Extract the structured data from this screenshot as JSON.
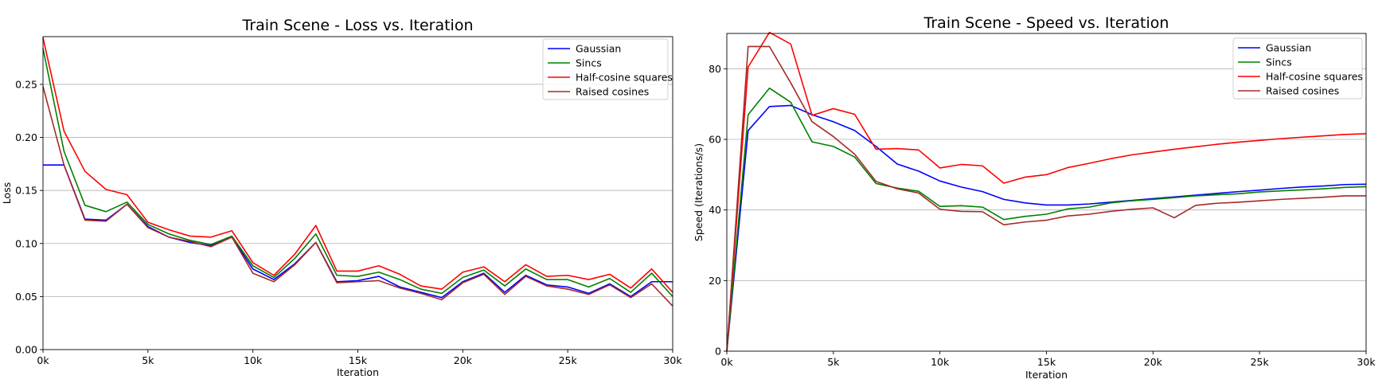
{
  "chart_data": [
    {
      "type": "line",
      "title": "Train Scene - Loss vs. Iteration",
      "xlabel": "Iteration",
      "ylabel": "Loss",
      "xlim": [
        0,
        30000
      ],
      "ylim": [
        0,
        0.295
      ],
      "xticks": [
        0,
        5000,
        10000,
        15000,
        20000,
        25000,
        30000
      ],
      "xtick_labels": [
        "0k",
        "5k",
        "10k",
        "15k",
        "20k",
        "25k",
        "30k"
      ],
      "yticks": [
        0,
        0.05,
        0.1,
        0.15,
        0.2,
        0.25
      ],
      "ytick_labels": [
        "0.00",
        "0.05",
        "0.10",
        "0.15",
        "0.20",
        "0.25"
      ],
      "grid": "horizontal",
      "legend": "top-right",
      "x": [
        0,
        1000,
        2000,
        3000,
        4000,
        5000,
        6000,
        7000,
        8000,
        9000,
        10000,
        11000,
        12000,
        13000,
        14000,
        15000,
        16000,
        17000,
        18000,
        19000,
        20000,
        21000,
        22000,
        23000,
        24000,
        25000,
        26000,
        27000,
        28000,
        29000,
        30000
      ],
      "series": [
        {
          "name": "Gaussian",
          "color": "#0000ff",
          "x": [
            0,
            1000,
            2000,
            3000,
            4000,
            5000,
            6000,
            7000,
            8000,
            9000,
            10000,
            11000,
            12000,
            13000,
            14000,
            15000,
            16000,
            17000,
            18000,
            19000,
            20000,
            21000,
            22000,
            23000,
            24000,
            25000,
            26000,
            27000,
            28000,
            29000,
            30000
          ],
          "values": [
            0.174,
            0.174,
            0.123,
            0.122,
            0.137,
            0.116,
            0.106,
            0.101,
            0.098,
            0.106,
            0.076,
            0.066,
            0.081,
            0.101,
            0.064,
            0.065,
            0.069,
            0.059,
            0.054,
            0.049,
            0.064,
            0.072,
            0.054,
            0.07,
            0.061,
            0.059,
            0.053,
            0.062,
            0.05,
            0.064,
            0.064
          ]
        },
        {
          "name": "Sincs",
          "color": "#008000",
          "values": [
            0.284,
            0.187,
            0.136,
            0.13,
            0.139,
            0.118,
            0.109,
            0.103,
            0.099,
            0.107,
            0.079,
            0.068,
            0.086,
            0.109,
            0.07,
            0.069,
            0.073,
            0.066,
            0.057,
            0.053,
            0.068,
            0.075,
            0.06,
            0.076,
            0.066,
            0.066,
            0.059,
            0.067,
            0.054,
            0.072,
            0.05
          ]
        },
        {
          "name": "Half-cosine squares",
          "color": "#ff0000",
          "values": [
            0.294,
            0.206,
            0.168,
            0.151,
            0.146,
            0.12,
            0.113,
            0.107,
            0.106,
            0.112,
            0.082,
            0.07,
            0.09,
            0.117,
            0.074,
            0.074,
            0.079,
            0.071,
            0.06,
            0.057,
            0.073,
            0.078,
            0.064,
            0.08,
            0.069,
            0.07,
            0.066,
            0.071,
            0.058,
            0.076,
            0.054
          ]
        },
        {
          "name": "Raised cosines",
          "color": "#a52a2a",
          "values": [
            0.248,
            0.174,
            0.122,
            0.121,
            0.137,
            0.115,
            0.106,
            0.102,
            0.097,
            0.106,
            0.072,
            0.064,
            0.08,
            0.101,
            0.063,
            0.064,
            0.065,
            0.058,
            0.053,
            0.047,
            0.063,
            0.071,
            0.052,
            0.069,
            0.06,
            0.057,
            0.052,
            0.061,
            0.049,
            0.062,
            0.041
          ]
        }
      ]
    },
    {
      "type": "line",
      "title": "Train Scene - Speed vs. Iteration",
      "xlabel": "Iteration",
      "ylabel": "Speed (Iterations/s)",
      "xlim": [
        0,
        30000
      ],
      "ylim": [
        0,
        90
      ],
      "xticks": [
        0,
        5000,
        10000,
        15000,
        20000,
        25000,
        30000
      ],
      "xtick_labels": [
        "0k",
        "5k",
        "10k",
        "15k",
        "20k",
        "25k",
        "30k"
      ],
      "yticks": [
        0,
        20,
        40,
        60,
        80
      ],
      "ytick_labels": [
        "0",
        "20",
        "40",
        "60",
        "80"
      ],
      "grid": "horizontal",
      "legend": "top-right",
      "x": [
        0,
        1000,
        2000,
        3000,
        4000,
        5000,
        6000,
        7000,
        8000,
        9000,
        10000,
        11000,
        12000,
        13000,
        14000,
        15000,
        16000,
        17000,
        18000,
        19000,
        20000,
        21000,
        22000,
        23000,
        24000,
        25000,
        26000,
        27000,
        28000,
        29000,
        30000
      ],
      "series": [
        {
          "name": "Gaussian",
          "color": "#0000ff",
          "values": [
            0,
            62.5,
            69.3,
            69.6,
            67.0,
            65.0,
            62.5,
            58.0,
            53.0,
            51.0,
            48.2,
            46.5,
            45.2,
            43.0,
            42.0,
            41.4,
            41.4,
            41.7,
            42.2,
            42.7,
            43.2,
            43.7,
            44.2,
            44.7,
            45.2,
            45.6,
            46.1,
            46.5,
            46.8,
            47.2,
            47.3
          ]
        },
        {
          "name": "Sincs",
          "color": "#008000",
          "values": [
            0,
            67.0,
            74.5,
            70.5,
            59.3,
            58.0,
            55.0,
            47.5,
            46.2,
            45.3,
            41.0,
            41.2,
            40.8,
            37.3,
            38.2,
            38.8,
            40.3,
            40.8,
            42.0,
            42.6,
            43.0,
            43.5,
            44.0,
            44.3,
            44.6,
            45.1,
            45.4,
            45.7,
            46.0,
            46.4,
            46.6
          ]
        },
        {
          "name": "Half-cosine squares",
          "color": "#ff0000",
          "values": [
            0,
            80.5,
            90.3,
            87.0,
            66.8,
            68.7,
            67.1,
            57.2,
            57.4,
            57.0,
            51.9,
            52.9,
            52.5,
            47.6,
            49.3,
            50.0,
            52.0,
            53.2,
            54.5,
            55.6,
            56.4,
            57.2,
            57.9,
            58.6,
            59.2,
            59.7,
            60.2,
            60.6,
            61.0,
            61.4,
            61.6
          ]
        },
        {
          "name": "Raised cosines",
          "color": "#a52a2a",
          "values": [
            0,
            86.3,
            86.3,
            76.0,
            65.0,
            60.8,
            55.8,
            48.1,
            46.0,
            44.8,
            40.2,
            39.6,
            39.5,
            35.8,
            36.6,
            37.1,
            38.3,
            38.8,
            39.6,
            40.2,
            40.6,
            37.8,
            41.3,
            41.9,
            42.2,
            42.6,
            43.0,
            43.3,
            43.6,
            44.0,
            44.0
          ]
        }
      ]
    }
  ]
}
